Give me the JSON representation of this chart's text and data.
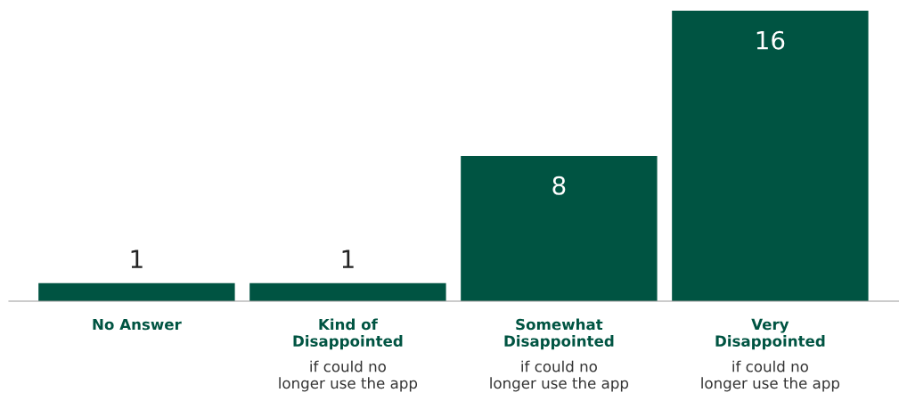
{
  "chart_data": {
    "type": "bar",
    "categories": [
      "No Answer",
      "Kind of\nDisappointed",
      "Somewhat\nDisappointed",
      "Very\nDisappointed"
    ],
    "values": [
      1,
      1,
      8,
      16
    ],
    "color": "#005442",
    "data_labels": true,
    "annotations": [
      "if could no\nlonger use the app",
      "if could no\nlonger use the app",
      "if could no\nlonger use the app"
    ]
  }
}
